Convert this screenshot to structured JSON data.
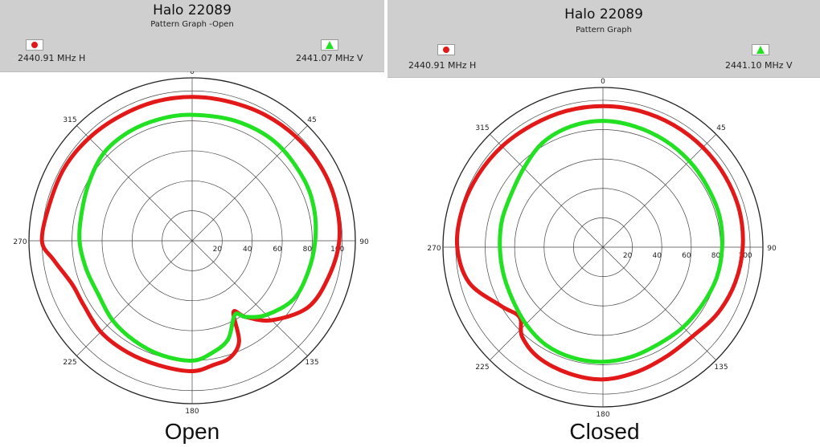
{
  "chart_data": [
    {
      "type": "polar-line",
      "title": "Halo 22089",
      "subtitle": "Pattern Graph -Open",
      "caption": "Open",
      "radial_ticks": [
        "20",
        "40",
        "60",
        "80",
        "100"
      ],
      "radial_range": [
        0,
        100
      ],
      "angle_labels": [
        "0",
        "45",
        "90",
        "135",
        "180",
        "225",
        "270",
        "315"
      ],
      "grid": true,
      "series": [
        {
          "name": "2440.91 MHz H",
          "color": "#e31818",
          "marker": "circle",
          "points": [
            {
              "angle": 0,
              "r": 96
            },
            {
              "angle": 15,
              "r": 96
            },
            {
              "angle": 30,
              "r": 97
            },
            {
              "angle": 45,
              "r": 98
            },
            {
              "angle": 60,
              "r": 99
            },
            {
              "angle": 75,
              "r": 99
            },
            {
              "angle": 90,
              "r": 98
            },
            {
              "angle": 105,
              "r": 94
            },
            {
              "angle": 120,
              "r": 89
            },
            {
              "angle": 135,
              "r": 75
            },
            {
              "angle": 145,
              "r": 62
            },
            {
              "angle": 150,
              "r": 55
            },
            {
              "angle": 155,
              "r": 74
            },
            {
              "angle": 162,
              "r": 82
            },
            {
              "angle": 170,
              "r": 84
            },
            {
              "angle": 180,
              "r": 87
            },
            {
              "angle": 195,
              "r": 86
            },
            {
              "angle": 210,
              "r": 86
            },
            {
              "angle": 225,
              "r": 86
            },
            {
              "angle": 240,
              "r": 84
            },
            {
              "angle": 250,
              "r": 85
            },
            {
              "angle": 262,
              "r": 93
            },
            {
              "angle": 270,
              "r": 100
            },
            {
              "angle": 285,
              "r": 98
            },
            {
              "angle": 300,
              "r": 98
            },
            {
              "angle": 315,
              "r": 97
            },
            {
              "angle": 330,
              "r": 96
            },
            {
              "angle": 345,
              "r": 96
            },
            {
              "angle": 360,
              "r": 96
            }
          ]
        },
        {
          "name": "2441.07 MHz V",
          "color": "#22e022",
          "marker": "triangle",
          "points": [
            {
              "angle": 0,
              "r": 84
            },
            {
              "angle": 20,
              "r": 85
            },
            {
              "angle": 40,
              "r": 86
            },
            {
              "angle": 60,
              "r": 85
            },
            {
              "angle": 75,
              "r": 84
            },
            {
              "angle": 90,
              "r": 82
            },
            {
              "angle": 105,
              "r": 80
            },
            {
              "angle": 120,
              "r": 78
            },
            {
              "angle": 135,
              "r": 70
            },
            {
              "angle": 145,
              "r": 62
            },
            {
              "angle": 150,
              "r": 57
            },
            {
              "angle": 160,
              "r": 70
            },
            {
              "angle": 170,
              "r": 76
            },
            {
              "angle": 180,
              "r": 80
            },
            {
              "angle": 195,
              "r": 79
            },
            {
              "angle": 210,
              "r": 77
            },
            {
              "angle": 225,
              "r": 75
            },
            {
              "angle": 240,
              "r": 72
            },
            {
              "angle": 255,
              "r": 73
            },
            {
              "angle": 270,
              "r": 75
            },
            {
              "angle": 285,
              "r": 76
            },
            {
              "angle": 300,
              "r": 79
            },
            {
              "angle": 315,
              "r": 83
            },
            {
              "angle": 330,
              "r": 84
            },
            {
              "angle": 345,
              "r": 84
            },
            {
              "angle": 360,
              "r": 84
            }
          ]
        }
      ]
    },
    {
      "type": "polar-line",
      "title": "Halo 22089",
      "subtitle": "Pattern Graph",
      "caption": "Closed",
      "radial_ticks": [
        "20",
        "40",
        "60",
        "80",
        "100"
      ],
      "radial_range": [
        0,
        100
      ],
      "angle_labels": [
        "0",
        "45",
        "90",
        "135",
        "180",
        "225",
        "270",
        "315"
      ],
      "grid": true,
      "series": [
        {
          "name": "2440.91 MHz H",
          "color": "#e31818",
          "marker": "circle",
          "points": [
            {
              "angle": 0,
              "r": 96
            },
            {
              "angle": 15,
              "r": 96
            },
            {
              "angle": 30,
              "r": 96
            },
            {
              "angle": 45,
              "r": 96
            },
            {
              "angle": 60,
              "r": 96
            },
            {
              "angle": 75,
              "r": 96
            },
            {
              "angle": 90,
              "r": 95
            },
            {
              "angle": 105,
              "r": 93
            },
            {
              "angle": 120,
              "r": 90
            },
            {
              "angle": 135,
              "r": 86
            },
            {
              "angle": 150,
              "r": 86
            },
            {
              "angle": 165,
              "r": 88
            },
            {
              "angle": 180,
              "r": 90
            },
            {
              "angle": 195,
              "r": 89
            },
            {
              "angle": 210,
              "r": 87
            },
            {
              "angle": 222,
              "r": 82
            },
            {
              "angle": 230,
              "r": 74
            },
            {
              "angle": 240,
              "r": 80
            },
            {
              "angle": 255,
              "r": 94
            },
            {
              "angle": 270,
              "r": 99
            },
            {
              "angle": 285,
              "r": 99
            },
            {
              "angle": 300,
              "r": 98
            },
            {
              "angle": 315,
              "r": 97
            },
            {
              "angle": 330,
              "r": 96
            },
            {
              "angle": 345,
              "r": 96
            },
            {
              "angle": 360,
              "r": 96
            }
          ]
        },
        {
          "name": "2441.10 MHz V",
          "color": "#22e022",
          "marker": "triangle",
          "points": [
            {
              "angle": 0,
              "r": 86
            },
            {
              "angle": 15,
              "r": 85
            },
            {
              "angle": 30,
              "r": 84
            },
            {
              "angle": 45,
              "r": 83
            },
            {
              "angle": 60,
              "r": 82
            },
            {
              "angle": 75,
              "r": 82
            },
            {
              "angle": 90,
              "r": 81
            },
            {
              "angle": 105,
              "r": 80
            },
            {
              "angle": 120,
              "r": 78
            },
            {
              "angle": 135,
              "r": 77
            },
            {
              "angle": 150,
              "r": 76
            },
            {
              "angle": 165,
              "r": 77
            },
            {
              "angle": 180,
              "r": 78
            },
            {
              "angle": 195,
              "r": 78
            },
            {
              "angle": 210,
              "r": 77
            },
            {
              "angle": 225,
              "r": 74
            },
            {
              "angle": 240,
              "r": 71
            },
            {
              "angle": 255,
              "r": 70
            },
            {
              "angle": 270,
              "r": 70
            },
            {
              "angle": 285,
              "r": 71
            },
            {
              "angle": 300,
              "r": 72
            },
            {
              "angle": 315,
              "r": 76
            },
            {
              "angle": 330,
              "r": 82
            },
            {
              "angle": 345,
              "r": 85
            },
            {
              "angle": 360,
              "r": 86
            }
          ]
        }
      ]
    }
  ]
}
